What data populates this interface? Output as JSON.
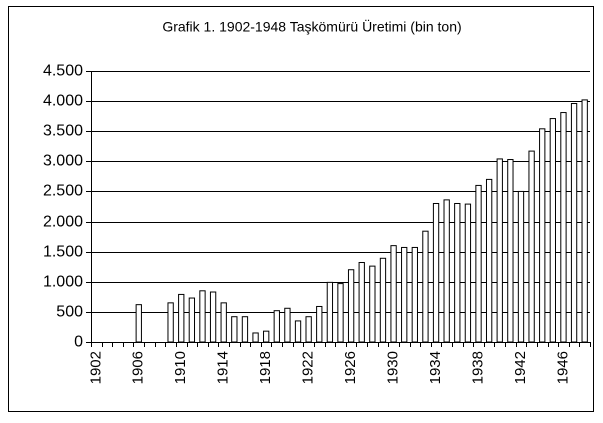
{
  "chart_data": {
    "type": "bar",
    "title": "Grafik 1. 1902-1948 Taşkömürü Üretimi (bin ton)",
    "categories": [
      "1902",
      null,
      null,
      null,
      "1906",
      null,
      null,
      null,
      "1910",
      null,
      null,
      null,
      "1914",
      null,
      null,
      null,
      "1918",
      null,
      null,
      null,
      "1922",
      null,
      null,
      null,
      "1926",
      null,
      null,
      null,
      "1930",
      null,
      null,
      null,
      "1934",
      null,
      null,
      null,
      "1938",
      null,
      null,
      null,
      "1942",
      null,
      null,
      null,
      "1946",
      null,
      null
    ],
    "values": [
      null,
      null,
      null,
      null,
      620,
      null,
      null,
      650,
      790,
      730,
      850,
      830,
      650,
      420,
      420,
      150,
      180,
      520,
      560,
      350,
      420,
      590,
      990,
      970,
      1200,
      1320,
      1260,
      1390,
      1600,
      1570,
      1570,
      1840,
      2300,
      2360,
      2300,
      2290,
      2600,
      2700,
      3040,
      3030,
      2500,
      3170,
      3540,
      3710,
      3810,
      3960,
      4020
    ],
    "color": "#ffffff",
    "ylim": [
      0,
      4500
    ],
    "yticks": [
      0,
      500,
      {
        "value": 1000,
        "label": "1.000"
      },
      {
        "value": 1500,
        "label": "1.500"
      },
      {
        "value": 2000,
        "label": "2.000"
      },
      {
        "value": 2500,
        "label": "2.500"
      },
      {
        "value": 3000,
        "label": "3.000"
      },
      {
        "value": 3500,
        "label": "3.500"
      },
      {
        "value": 4000,
        "label": "4.000"
      },
      {
        "value": 4500,
        "label": "4.500"
      }
    ],
    "grid": true
  }
}
